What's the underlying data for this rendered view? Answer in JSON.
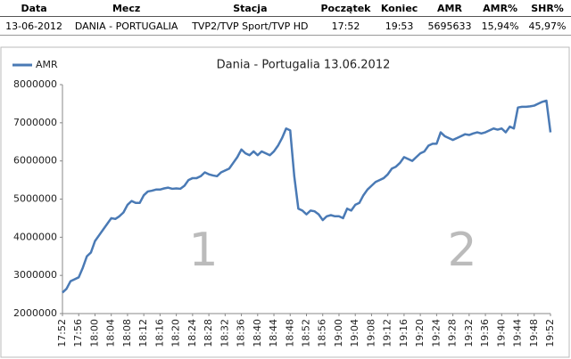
{
  "table": {
    "headers": [
      "Data",
      "Mecz",
      "Stacja",
      "Początek",
      "Koniec",
      "AMR",
      "AMR%",
      "SHR%"
    ],
    "row": [
      "13-06-2012",
      "DANIA - PORTUGALIA",
      "TVP2/TVP Sport/TVP HD",
      "17:52",
      "19:53",
      "5695633",
      "15,94%",
      "45,97%"
    ]
  },
  "chart_data": {
    "type": "line",
    "title": "Dania - Portugalia 13.06.2012",
    "annotations": [
      "1",
      "2"
    ],
    "categories": [
      "17:52",
      null,
      null,
      null,
      "17:56",
      null,
      null,
      null,
      "18:00",
      null,
      null,
      null,
      "18:04",
      null,
      null,
      null,
      "18:08",
      null,
      null,
      null,
      "18:12",
      null,
      null,
      null,
      "18:16",
      null,
      null,
      null,
      "18:20",
      null,
      null,
      null,
      "18:24",
      null,
      null,
      null,
      "18:28",
      null,
      null,
      null,
      "18:32",
      null,
      null,
      null,
      "18:36",
      null,
      null,
      null,
      "18:40",
      null,
      null,
      null,
      "18:44",
      null,
      null,
      null,
      "18:48",
      null,
      null,
      null,
      "18:52",
      null,
      null,
      null,
      "18:56",
      null,
      null,
      null,
      "19:00",
      null,
      null,
      null,
      "19:04",
      null,
      null,
      null,
      "19:08",
      null,
      null,
      null,
      "19:12",
      null,
      null,
      null,
      "19:16",
      null,
      null,
      null,
      "19:20",
      null,
      null,
      null,
      "19:24",
      null,
      null,
      null,
      "19:28",
      null,
      null,
      null,
      "19:32",
      null,
      null,
      null,
      "19:36",
      null,
      null,
      null,
      "19:40",
      null,
      null,
      null,
      "19:44",
      null,
      null,
      null,
      "19:48",
      null,
      null,
      null,
      "19:52"
    ],
    "series": [
      {
        "name": "AMR",
        "color": "#4a7ab5",
        "values": [
          2550000,
          2650000,
          2850000,
          2900000,
          2950000,
          3200000,
          3500000,
          3600000,
          3900000,
          4050000,
          4200000,
          4350000,
          4500000,
          4480000,
          4550000,
          4650000,
          4850000,
          4950000,
          4900000,
          4900000,
          5100000,
          5200000,
          5220000,
          5250000,
          5250000,
          5280000,
          5300000,
          5270000,
          5280000,
          5270000,
          5350000,
          5500000,
          5550000,
          5550000,
          5600000,
          5700000,
          5650000,
          5620000,
          5600000,
          5700000,
          5750000,
          5800000,
          5950000,
          6100000,
          6300000,
          6200000,
          6150000,
          6250000,
          6150000,
          6250000,
          6200000,
          6150000,
          6250000,
          6400000,
          6600000,
          6850000,
          6800000,
          5600000,
          4750000,
          4700000,
          4600000,
          4700000,
          4680000,
          4600000,
          4450000,
          4550000,
          4580000,
          4550000,
          4550000,
          4500000,
          4750000,
          4700000,
          4850000,
          4900000,
          5100000,
          5250000,
          5350000,
          5450000,
          5500000,
          5550000,
          5650000,
          5800000,
          5850000,
          5950000,
          6100000,
          6050000,
          6000000,
          6100000,
          6200000,
          6250000,
          6400000,
          6450000,
          6450000,
          6750000,
          6650000,
          6600000,
          6550000,
          6600000,
          6650000,
          6700000,
          6680000,
          6720000,
          6750000,
          6720000,
          6750000,
          6800000,
          6850000,
          6820000,
          6850000,
          6750000,
          6900000,
          6850000,
          7400000,
          7420000,
          7420000,
          7430000,
          7450000,
          7500000,
          7550000,
          7580000,
          6750000
        ]
      }
    ],
    "ylim": [
      2000000,
      8000000
    ],
    "yticks": [
      2000000,
      3000000,
      4000000,
      5000000,
      6000000,
      7000000,
      8000000
    ],
    "grid": false,
    "legend": "top-left"
  }
}
